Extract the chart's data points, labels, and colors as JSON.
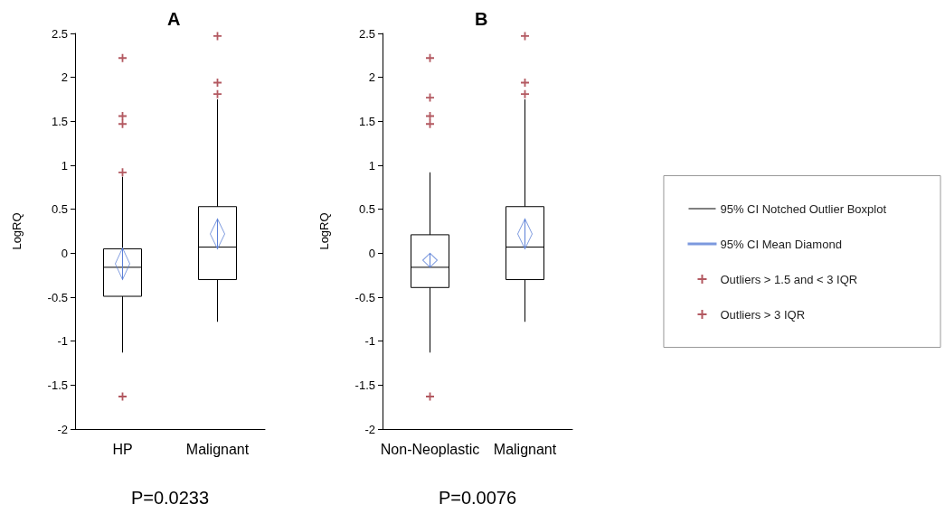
{
  "chart_data": [
    {
      "type": "box",
      "title": "A",
      "ylabel": "LogRQ",
      "categories": [
        "HP",
        "Malignant"
      ],
      "ylim": [
        -2,
        2.5
      ],
      "yticks": [
        -2,
        -1.5,
        -1,
        -0.5,
        0,
        0.5,
        1,
        1.5,
        2,
        2.5
      ],
      "grid": false,
      "legend": false,
      "annotations": [
        "P=0.0233"
      ],
      "series": [
        {
          "color": "#000000",
          "boxes": [
            {
              "low": -1.13,
              "q1": -0.49,
              "median": -0.16,
              "q3": 0.05,
              "high": 0.87
            },
            {
              "low": -0.78,
              "q1": -0.3,
              "median": 0.07,
              "q3": 0.53,
              "high": 1.75
            }
          ]
        },
        {
          "type": "scatter",
          "marker": "diamond",
          "color": "#5b7fd6",
          "x": [
            "HP",
            "Malignant"
          ],
          "values": [
            -0.12,
            0.22
          ],
          "errors": [
            0.18,
            0.17
          ]
        },
        {
          "type": "scatter",
          "marker": "cross",
          "color": "#a0303a",
          "x": [
            "HP",
            "HP",
            "HP",
            "HP",
            "Malignant",
            "Malignant",
            "Malignant"
          ],
          "values": [
            0.92,
            1.56,
            1.47,
            -1.63,
            2.47,
            1.94,
            1.81
          ]
        },
        {
          "type": "scatter",
          "marker": "cross",
          "color": "#a0303a",
          "x": [
            "HP"
          ],
          "values": [
            2.22
          ]
        }
      ]
    },
    {
      "type": "box",
      "title": "B",
      "ylabel": "LogRQ",
      "categories": [
        "Non-Neoplastic",
        "Malignant"
      ],
      "ylim": [
        -2,
        2.5
      ],
      "yticks": [
        -2,
        -1.5,
        -1,
        -0.5,
        0,
        0.5,
        1,
        1.5,
        2,
        2.5
      ],
      "grid": false,
      "legend": "right",
      "annotations": [
        "P=0.0076"
      ],
      "series": [
        {
          "name": "95% CI Notched Outlier Boxplot",
          "color": "#000000",
          "boxes": [
            {
              "low": -1.13,
              "q1": -0.39,
              "median": -0.16,
              "q3": 0.21,
              "high": 0.92
            },
            {
              "low": -0.78,
              "q1": -0.3,
              "median": 0.07,
              "q3": 0.53,
              "high": 1.75
            }
          ]
        },
        {
          "name": "95% CI Mean Diamond",
          "type": "scatter",
          "marker": "diamond",
          "color": "#5b7fd6",
          "x": [
            "Non-Neoplastic",
            "Malignant"
          ],
          "values": [
            -0.08,
            0.22
          ],
          "errors": [
            0.08,
            0.17
          ]
        },
        {
          "name": "Outliers > 1.5 and < 3 IQR",
          "type": "scatter",
          "marker": "cross",
          "color": "#a0303a",
          "x": [
            "Non-Neoplastic",
            "Non-Neoplastic",
            "Non-Neoplastic",
            "Non-Neoplastic",
            "Malignant",
            "Malignant",
            "Malignant"
          ],
          "values": [
            1.77,
            1.56,
            1.47,
            -1.63,
            2.47,
            1.94,
            1.81
          ]
        },
        {
          "name": "Outliers > 3 IQR",
          "type": "scatter",
          "marker": "cross",
          "color": "#a0303a",
          "x": [
            "Non-Neoplastic"
          ],
          "values": [
            2.22
          ]
        }
      ]
    }
  ]
}
